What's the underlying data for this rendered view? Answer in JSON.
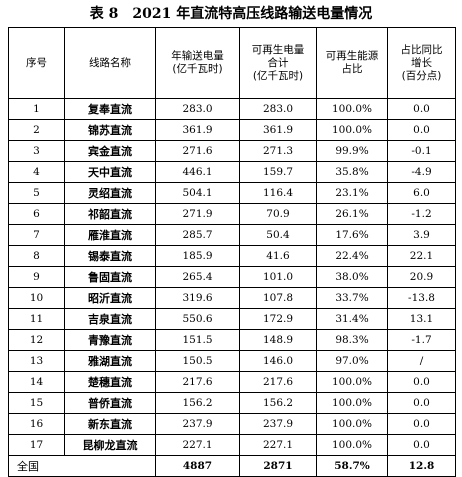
{
  "title": "表 8　2021 年直流特高压线路输送电量情况",
  "headers": {
    "index": "序号",
    "name": "线路名称",
    "total": "年输送电量\n(亿千瓦时)",
    "renewable": "可再生电量\n合计\n(亿千瓦时)",
    "share": "可再生能源\n占比",
    "change": "占比同比\n增长\n(百分点)"
  },
  "rows": [
    {
      "index": "1",
      "name": "复奉直流",
      "total": "283.0",
      "renewable": "283.0",
      "share": "100.0%",
      "change": "0.0"
    },
    {
      "index": "2",
      "name": "锦苏直流",
      "total": "361.9",
      "renewable": "361.9",
      "share": "100.0%",
      "change": "0.0"
    },
    {
      "index": "3",
      "name": "宾金直流",
      "total": "271.6",
      "renewable": "271.3",
      "share": "99.9%",
      "change": "-0.1"
    },
    {
      "index": "4",
      "name": "天中直流",
      "total": "446.1",
      "renewable": "159.7",
      "share": "35.8%",
      "change": "-4.9"
    },
    {
      "index": "5",
      "name": "灵绍直流",
      "total": "504.1",
      "renewable": "116.4",
      "share": "23.1%",
      "change": "6.0"
    },
    {
      "index": "6",
      "name": "祁韶直流",
      "total": "271.9",
      "renewable": "70.9",
      "share": "26.1%",
      "change": "-1.2"
    },
    {
      "index": "7",
      "name": "雁淮直流",
      "total": "285.7",
      "renewable": "50.4",
      "share": "17.6%",
      "change": "3.9"
    },
    {
      "index": "8",
      "name": "锡泰直流",
      "total": "185.9",
      "renewable": "41.6",
      "share": "22.4%",
      "change": "22.1"
    },
    {
      "index": "9",
      "name": "鲁固直流",
      "total": "265.4",
      "renewable": "101.0",
      "share": "38.0%",
      "change": "20.9"
    },
    {
      "index": "10",
      "name": "昭沂直流",
      "total": "319.6",
      "renewable": "107.8",
      "share": "33.7%",
      "change": "-13.8"
    },
    {
      "index": "11",
      "name": "吉泉直流",
      "total": "550.6",
      "renewable": "172.9",
      "share": "31.4%",
      "change": "13.1"
    },
    {
      "index": "12",
      "name": "青豫直流",
      "total": "151.5",
      "renewable": "148.9",
      "share": "98.3%",
      "change": "-1.7"
    },
    {
      "index": "13",
      "name": "雅湖直流",
      "total": "150.5",
      "renewable": "146.0",
      "share": "97.0%",
      "change": "/"
    },
    {
      "index": "14",
      "name": "楚穗直流",
      "total": "217.6",
      "renewable": "217.6",
      "share": "100.0%",
      "change": "0.0"
    },
    {
      "index": "15",
      "name": "普侨直流",
      "total": "156.2",
      "renewable": "156.2",
      "share": "100.0%",
      "change": "0.0"
    },
    {
      "index": "16",
      "name": "新东直流",
      "total": "237.9",
      "renewable": "237.9",
      "share": "100.0%",
      "change": "0.0"
    },
    {
      "index": "17",
      "name": "昆柳龙直流",
      "total": "227.1",
      "renewable": "227.1",
      "share": "100.0%",
      "change": "0.0"
    }
  ],
  "total_row": {
    "label": "全国",
    "total": "4887",
    "renewable": "2871",
    "share": "58.7%",
    "change": "12.8"
  }
}
